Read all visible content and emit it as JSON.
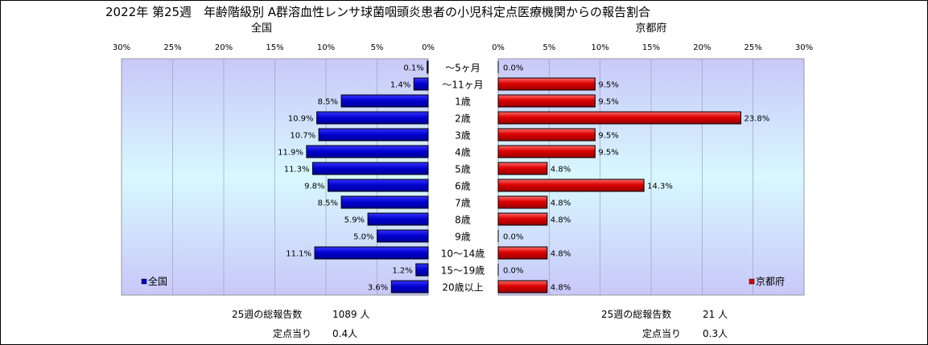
{
  "chart_data": {
    "type": "bar",
    "title": "2022年 第25週　年齢階級別 A群溶血性レンサ球菌咽頭炎患者の小児科定点医療機関からの報告割合",
    "categories": [
      "～5ヶ月",
      "～11ヶ月",
      "1歳",
      "2歳",
      "3歳",
      "4歳",
      "5歳",
      "6歳",
      "7歳",
      "8歳",
      "9歳",
      "10～14歳",
      "15～19歳",
      "20歳以上"
    ],
    "panels": [
      {
        "subtitle": "全国",
        "series_name": "全国",
        "color": "#0000cc",
        "direction": "left",
        "values": [
          0.1,
          1.4,
          8.5,
          10.9,
          10.7,
          11.9,
          11.3,
          9.8,
          8.5,
          5.9,
          5.0,
          11.1,
          1.2,
          3.6
        ],
        "value_labels": [
          "0.1%",
          "1.4%",
          "8.5%",
          "10.9%",
          "10.7%",
          "11.9%",
          "11.3%",
          "9.8%",
          "8.5%",
          "5.9%",
          "5.0%",
          "11.1%",
          "1.2%",
          "3.6%"
        ],
        "xlim": [
          0,
          30
        ],
        "ticks": [
          "30%",
          "25%",
          "20%",
          "15%",
          "10%",
          "5%",
          "0%"
        ],
        "legend_position": "bottom-left"
      },
      {
        "subtitle": "京都府",
        "series_name": "京都府",
        "color": "#dd0000",
        "direction": "right",
        "values": [
          0.0,
          9.5,
          9.5,
          23.8,
          9.5,
          9.5,
          4.8,
          14.3,
          4.8,
          4.8,
          0.0,
          4.8,
          0.0,
          4.8
        ],
        "value_labels": [
          "0.0%",
          "9.5%",
          "9.5%",
          "23.8%",
          "9.5%",
          "9.5%",
          "4.8%",
          "14.3%",
          "4.8%",
          "4.8%",
          "0.0%",
          "4.8%",
          "0.0%",
          "4.8%"
        ],
        "xlim": [
          0,
          30
        ],
        "ticks": [
          "0%",
          "5%",
          "10%",
          "15%",
          "20%",
          "25%",
          "30%"
        ],
        "legend_position": "bottom-right"
      }
    ],
    "grid": true
  },
  "footer": {
    "left": {
      "total_label": "25週の総報告数",
      "total_value": "1089 人",
      "per_label": "定点当り",
      "per_value": "0.4人"
    },
    "right": {
      "total_label": "25週の総報告数",
      "total_value": "21 人",
      "per_label": "定点当り",
      "per_value": "0.3人"
    }
  },
  "colors": {
    "plot_bg_top": "#c8c8f8",
    "plot_bg_mid": "#d8f8ff",
    "plot_bg_bottom": "#c8c8f8",
    "bar_stroke": "#000000"
  }
}
